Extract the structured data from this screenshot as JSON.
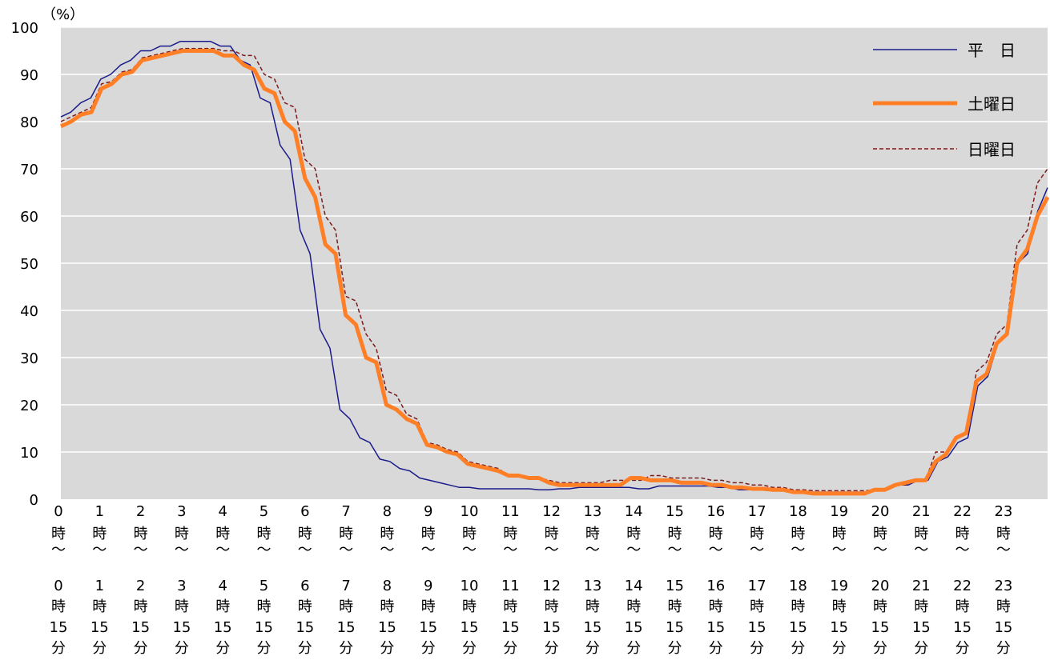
{
  "chart_data": {
    "type": "line",
    "ylabel": "（%）",
    "ylim": [
      0,
      100
    ],
    "yticks": [
      "0",
      "10",
      "20",
      "30",
      "40",
      "50",
      "60",
      "70",
      "80",
      "90",
      "100"
    ],
    "grid": true,
    "legend_position": "top-right",
    "x_start_labels": [
      [
        "0",
        "時",
        "〜"
      ],
      [
        "1",
        "時",
        "〜"
      ],
      [
        "2",
        "時",
        "〜"
      ],
      [
        "3",
        "時",
        "〜"
      ],
      [
        "4",
        "時",
        "〜"
      ],
      [
        "5",
        "時",
        "〜"
      ],
      [
        "6",
        "時",
        "〜"
      ],
      [
        "7",
        "時",
        "〜"
      ],
      [
        "8",
        "時",
        "〜"
      ],
      [
        "9",
        "時",
        "〜"
      ],
      [
        "10",
        "時",
        "〜"
      ],
      [
        "11",
        "時",
        "〜"
      ],
      [
        "12",
        "時",
        "〜"
      ],
      [
        "13",
        "時",
        "〜"
      ],
      [
        "14",
        "時",
        "〜"
      ],
      [
        "15",
        "時",
        "〜"
      ],
      [
        "16",
        "時",
        "〜"
      ],
      [
        "17",
        "時",
        "〜"
      ],
      [
        "18",
        "時",
        "〜"
      ],
      [
        "19",
        "時",
        "〜"
      ],
      [
        "20",
        "時",
        "〜"
      ],
      [
        "21",
        "時",
        "〜"
      ],
      [
        "22",
        "時",
        "〜"
      ],
      [
        "23",
        "時",
        "〜"
      ]
    ],
    "x_end_labels": [
      [
        "0",
        "時",
        "15",
        "分"
      ],
      [
        "1",
        "時",
        "15",
        "分"
      ],
      [
        "2",
        "時",
        "15",
        "分"
      ],
      [
        "3",
        "時",
        "15",
        "分"
      ],
      [
        "4",
        "時",
        "15",
        "分"
      ],
      [
        "5",
        "時",
        "15",
        "分"
      ],
      [
        "6",
        "時",
        "15",
        "分"
      ],
      [
        "7",
        "時",
        "15",
        "分"
      ],
      [
        "8",
        "時",
        "15",
        "分"
      ],
      [
        "9",
        "時",
        "15",
        "分"
      ],
      [
        "10",
        "時",
        "15",
        "分"
      ],
      [
        "11",
        "時",
        "15",
        "分"
      ],
      [
        "12",
        "時",
        "15",
        "分"
      ],
      [
        "13",
        "時",
        "15",
        "分"
      ],
      [
        "14",
        "時",
        "15",
        "分"
      ],
      [
        "15",
        "時",
        "15",
        "分"
      ],
      [
        "16",
        "時",
        "15",
        "分"
      ],
      [
        "17",
        "時",
        "15",
        "分"
      ],
      [
        "18",
        "時",
        "15",
        "分"
      ],
      [
        "19",
        "時",
        "15",
        "分"
      ],
      [
        "20",
        "時",
        "15",
        "分"
      ],
      [
        "21",
        "時",
        "15",
        "分"
      ],
      [
        "22",
        "時",
        "15",
        "分"
      ],
      [
        "23",
        "時",
        "15",
        "分"
      ]
    ],
    "series": [
      {
        "name": "平　日",
        "color": "#1a1a8c",
        "style": "thin-solid",
        "values": [
          81,
          82,
          84,
          85,
          89,
          90,
          92,
          93,
          95,
          95,
          96,
          96,
          97,
          97,
          97,
          97,
          96,
          96,
          93,
          92,
          85,
          84,
          75,
          72,
          57,
          52,
          36,
          32,
          19,
          17,
          13,
          12,
          8.5,
          8,
          6.5,
          6,
          4.5,
          4,
          3.5,
          3,
          2.5,
          2.5,
          2.2,
          2.2,
          2.2,
          2.2,
          2.2,
          2.2,
          2,
          2,
          2.2,
          2.2,
          2.5,
          2.5,
          2.5,
          2.5,
          2.5,
          2.5,
          2.2,
          2.2,
          2.8,
          2.8,
          2.8,
          2.8,
          2.8,
          2.8,
          2.5,
          2.5,
          2,
          2,
          2,
          2,
          2,
          2,
          1.5,
          1.5,
          1.5,
          1.5,
          1.5,
          1.5,
          1.5,
          1.5,
          2,
          2,
          3,
          3,
          4,
          4,
          8,
          9,
          12,
          13,
          24,
          26,
          33,
          35,
          50,
          52,
          61,
          66
        ]
      },
      {
        "name": "土曜日",
        "color": "#ff7f27",
        "style": "thick-solid",
        "values": [
          79,
          80,
          81.5,
          82,
          87,
          88,
          90,
          90.5,
          93,
          93.5,
          94,
          94.5,
          95,
          95,
          95,
          95,
          94,
          94,
          92,
          91,
          87,
          86,
          80,
          78,
          68,
          64,
          54,
          52,
          39,
          37,
          30,
          29,
          20,
          19,
          17,
          16,
          11.5,
          11,
          10,
          9.5,
          7.5,
          7,
          6.5,
          6,
          5,
          5,
          4.5,
          4.5,
          3.5,
          3,
          3,
          3,
          3,
          3,
          3,
          3,
          4.5,
          4.5,
          4,
          4,
          4,
          3.5,
          3.5,
          3.5,
          3,
          3,
          2.5,
          2.5,
          2.2,
          2.2,
          2,
          2,
          1.5,
          1.5,
          1.2,
          1.2,
          1.2,
          1.2,
          1.2,
          1.2,
          2,
          2,
          3,
          3.5,
          4,
          4,
          8,
          9.5,
          13,
          14,
          25,
          26.5,
          33,
          35,
          50,
          53,
          60,
          64
        ]
      },
      {
        "name": "日曜日",
        "color": "#7b1b1b",
        "style": "dashed",
        "values": [
          80,
          81,
          82,
          83,
          88,
          88.5,
          90.5,
          91,
          93.5,
          94,
          94.5,
          95,
          95.5,
          95.5,
          95.5,
          95.5,
          95,
          95,
          94,
          94,
          90,
          89,
          84,
          83,
          72,
          70,
          60,
          57,
          43,
          42,
          35,
          32,
          23,
          22,
          18,
          17,
          12,
          11.5,
          10.5,
          10,
          8,
          7.5,
          7,
          6.5,
          5,
          5,
          4.5,
          4.5,
          4,
          3.5,
          3.5,
          3.5,
          3.5,
          3.5,
          4,
          4,
          4,
          4,
          5,
          5,
          4.5,
          4.5,
          4.5,
          4.5,
          4,
          4,
          3.5,
          3.5,
          3,
          3,
          2.5,
          2.5,
          2,
          2,
          1.8,
          1.8,
          1.8,
          1.8,
          1.8,
          1.8,
          2,
          2,
          3,
          3,
          4,
          4,
          10,
          10,
          13,
          14,
          27,
          29,
          35,
          37,
          54,
          57,
          67,
          70
        ]
      }
    ]
  }
}
